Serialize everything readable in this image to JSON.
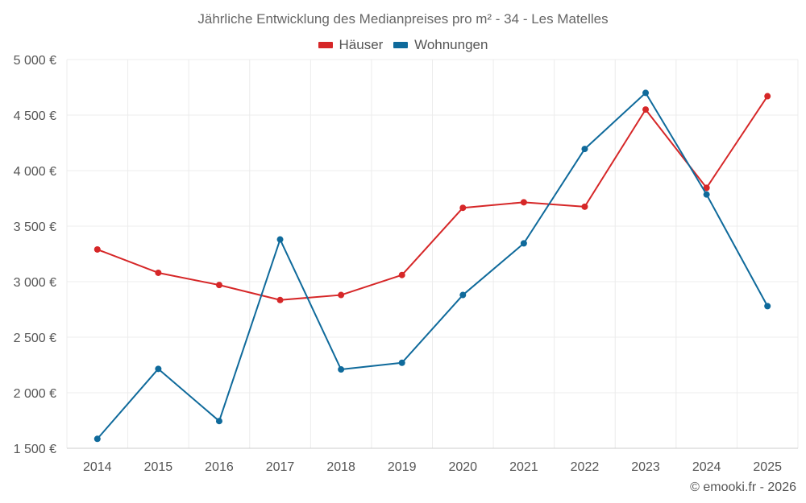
{
  "chart_data": {
    "type": "line",
    "title": "Jährliche Entwicklung des Medianpreises pro m² - 34 - Les Matelles",
    "categories": [
      "2014",
      "2015",
      "2016",
      "2017",
      "2018",
      "2019",
      "2020",
      "2021",
      "2022",
      "2023",
      "2024",
      "2025"
    ],
    "series": [
      {
        "name": "Häuser",
        "color": "#d62728",
        "values": [
          3290,
          3080,
          2970,
          2835,
          2880,
          3060,
          3665,
          3715,
          3675,
          4550,
          3845,
          4670
        ]
      },
      {
        "name": "Wohnungen",
        "color": "#0f6a9b",
        "values": [
          1585,
          2215,
          1745,
          3380,
          2210,
          2270,
          2880,
          3345,
          4195,
          4700,
          3785,
          2780
        ]
      }
    ],
    "ylim": [
      1500,
      5000
    ],
    "yticks": [
      1500,
      2000,
      2500,
      3000,
      3500,
      4000,
      4500,
      5000
    ],
    "ytick_labels": [
      "1 500 €",
      "2 000 €",
      "2 500 €",
      "3 000 €",
      "3 500 €",
      "4 000 €",
      "4 500 €",
      "5 000 €"
    ],
    "xlabel": "",
    "ylabel": "",
    "grid": true,
    "legend_position": "top-center"
  },
  "credit": "© emooki.fr - 2026"
}
